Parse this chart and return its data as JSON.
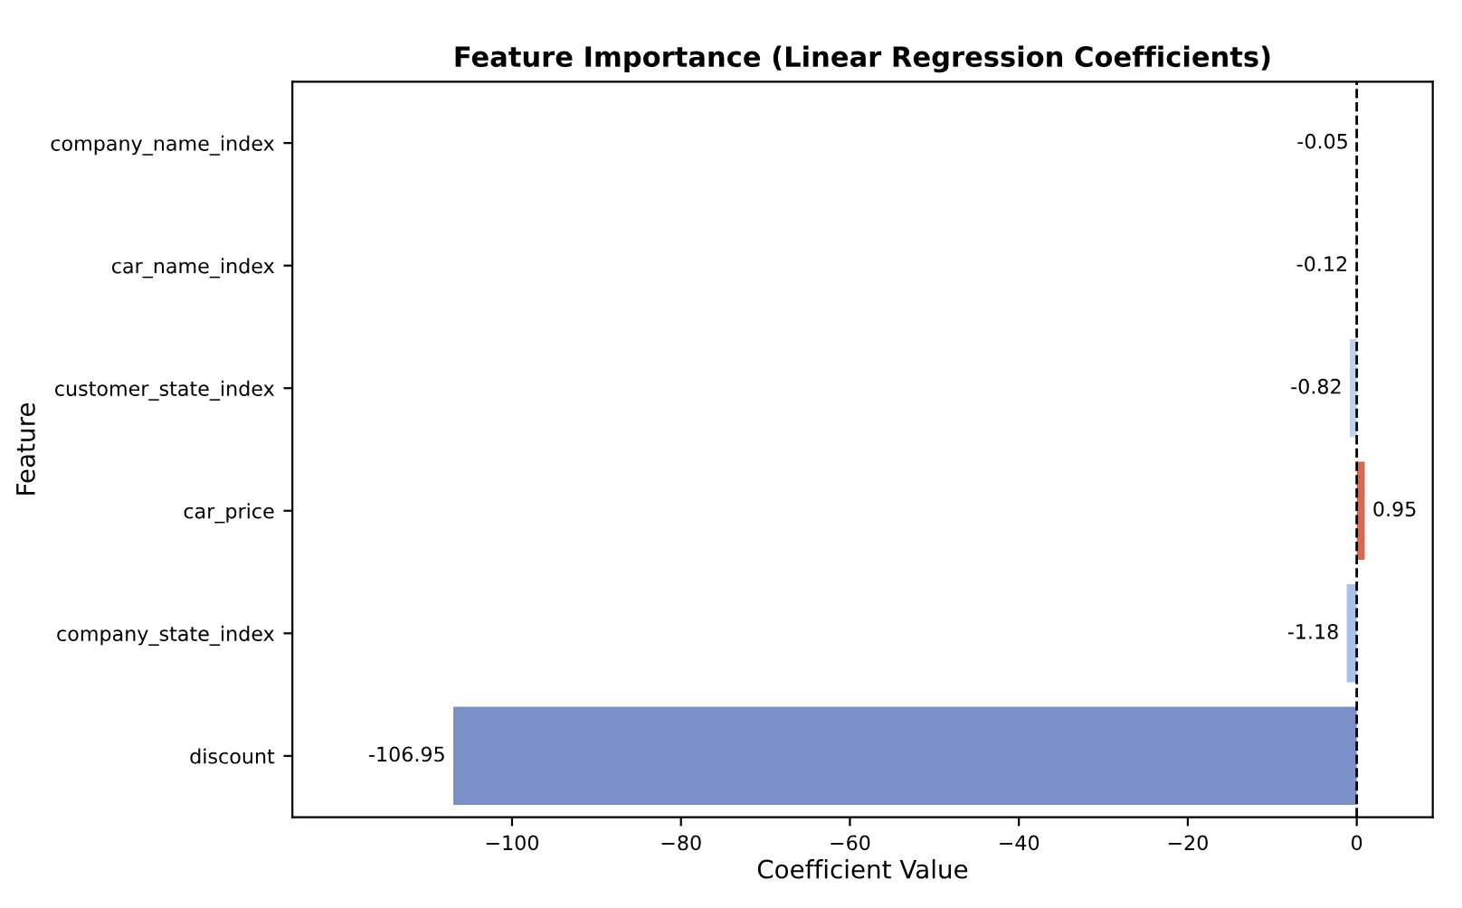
{
  "chart_data": {
    "type": "bar",
    "orientation": "horizontal",
    "title": "Feature Importance (Linear Regression Coefficients)",
    "xlabel": "Coefficient Value",
    "ylabel": "Feature",
    "categories": [
      "company_name_index",
      "car_name_index",
      "customer_state_index",
      "car_price",
      "company_state_index",
      "discount"
    ],
    "values": [
      -0.05,
      -0.12,
      -0.82,
      0.95,
      -1.18,
      -106.95
    ],
    "colors": [
      "#dcdde0",
      "#d5dbe6",
      "#c3d3ef",
      "#d9694e",
      "#a9c1ea",
      "#7b8fc9"
    ],
    "data_labels": true,
    "xlim": [
      -126,
      9
    ],
    "xticks": [
      {
        "value": -100,
        "label": "−100"
      },
      {
        "value": -80,
        "label": "−80"
      },
      {
        "value": -60,
        "label": "−60"
      },
      {
        "value": -40,
        "label": "−40"
      },
      {
        "value": -20,
        "label": "−20"
      },
      0
    ],
    "ref_lines": [
      {
        "axis": "x",
        "value": 0,
        "color": "#000000",
        "line_style": "dashed"
      }
    ],
    "grid": false,
    "legend": false
  }
}
